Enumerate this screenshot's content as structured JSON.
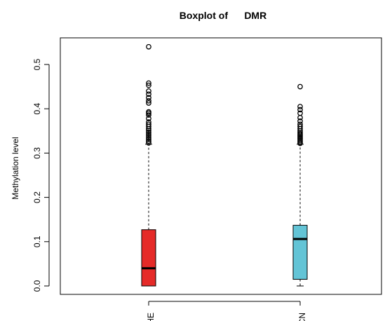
{
  "chart_data": {
    "type": "boxplot",
    "title": "Boxplot of      DMR",
    "xlabel": "",
    "ylabel": "Methylation level",
    "ylim": [
      -0.02,
      0.57
    ],
    "yticks": [
      "0.0",
      "0.1",
      "0.2",
      "0.3",
      "0.4",
      "0.5"
    ],
    "grid": false,
    "legend": "none",
    "categories": [
      "HE",
      "CN"
    ],
    "boxes": [
      {
        "name": "HE",
        "color": "#e52a28",
        "whisker_low": 0.0,
        "q1": 0.0,
        "median": 0.04,
        "q3": 0.127,
        "whisker_high": 0.32,
        "outliers": [
          0.323,
          0.327,
          0.331,
          0.335,
          0.339,
          0.343,
          0.347,
          0.351,
          0.355,
          0.36,
          0.365,
          0.37,
          0.378,
          0.386,
          0.39,
          0.393,
          0.413,
          0.418,
          0.425,
          0.433,
          0.44,
          0.453,
          0.458,
          0.54
        ]
      },
      {
        "name": "CN",
        "color": "#63c4d6",
        "whisker_low": 0.0,
        "q1": 0.015,
        "median": 0.106,
        "q3": 0.137,
        "whisker_high": 0.32,
        "outliers": [
          0.322,
          0.325,
          0.328,
          0.331,
          0.334,
          0.337,
          0.34,
          0.343,
          0.346,
          0.35,
          0.355,
          0.36,
          0.365,
          0.372,
          0.38,
          0.39,
          0.398,
          0.405,
          0.45
        ]
      }
    ]
  }
}
